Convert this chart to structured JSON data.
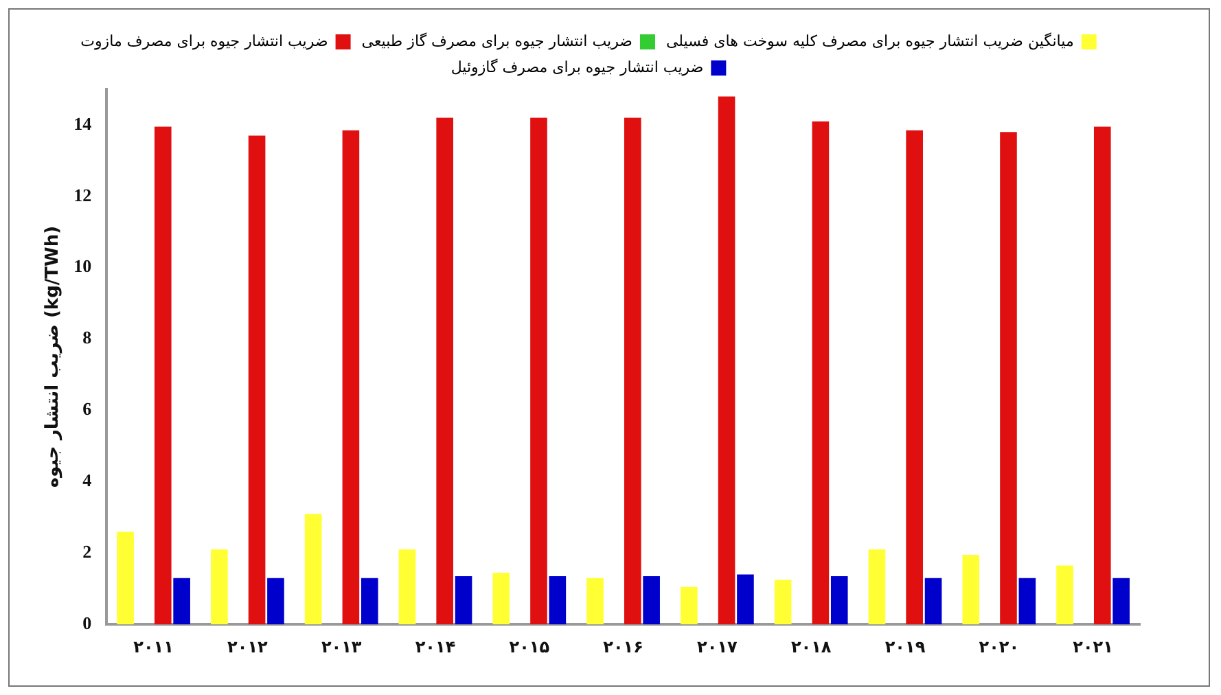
{
  "chart_data": {
    "type": "bar",
    "ylabel": "ضریب انتشار جیوه (kg/TWh)",
    "categories": [
      "۲۰۱۱",
      "۲۰۱۲",
      "۲۰۱۳",
      "۲۰۱۴",
      "۲۰۱۵",
      "۲۰۱۶",
      "۲۰۱۷",
      "۲۰۱۸",
      "۲۰۱۹",
      "۲۰۲۰",
      "۲۰۲۱"
    ],
    "series": [
      {
        "name": "میانگین ضریب انتشار جیوه برای مصرف کلیه سوخت های فسیلی",
        "color": "#ffff33",
        "values": [
          2.6,
          2.1,
          3.1,
          2.1,
          1.45,
          1.3,
          1.05,
          1.25,
          2.1,
          1.95,
          1.65
        ]
      },
      {
        "name": "ضریب انتشار جیوه برای مصرف گاز طبیعی",
        "color": "#33cc33",
        "values": [
          0,
          0,
          0,
          0,
          0,
          0,
          0,
          0,
          0,
          0,
          0
        ]
      },
      {
        "name": "ضریب انتشار جیوه برای مصرف مازوت",
        "color": "#e01010",
        "values": [
          13.95,
          13.7,
          13.85,
          14.2,
          14.2,
          14.2,
          14.8,
          14.1,
          13.85,
          13.8,
          13.95
        ]
      },
      {
        "name": "ضریب انتشار جیوه برای مصرف گازوئیل",
        "color": "#0000cc",
        "values": [
          1.3,
          1.3,
          1.3,
          1.35,
          1.35,
          1.35,
          1.4,
          1.35,
          1.3,
          1.3,
          1.3
        ]
      }
    ],
    "ylim": [
      0,
      15
    ],
    "yticks": [
      0,
      2,
      4,
      6,
      8,
      10,
      12,
      14
    ],
    "grid": false,
    "legend": "top"
  }
}
